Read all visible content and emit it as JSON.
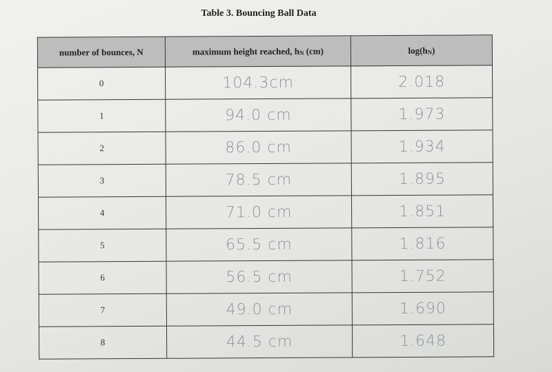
{
  "title": "Table 3. Bouncing Ball Data",
  "table": {
    "headers": [
      {
        "text": "number of bounces, N"
      },
      {
        "text": "maximum height reached, h",
        "sub": "N",
        "after": " (cm)"
      },
      {
        "text": "log(h",
        "sub": "N",
        "after": ")"
      }
    ],
    "rows": [
      [
        "0",
        "104.3cm",
        "2.018"
      ],
      [
        "1",
        "94.0 cm",
        "1.973"
      ],
      [
        "2",
        "86.0 cm",
        "1.934"
      ],
      [
        "3",
        "78.5 cm",
        "1.895"
      ],
      [
        "4",
        "71.0 cm",
        "1.851"
      ],
      [
        "5",
        "65.5 cm",
        "1.816"
      ],
      [
        "6",
        "56.5 cm",
        "1.752"
      ],
      [
        "7",
        "49.0 cm",
        "1.690"
      ],
      [
        "8",
        "44.5 cm",
        "1.648"
      ]
    ]
  }
}
